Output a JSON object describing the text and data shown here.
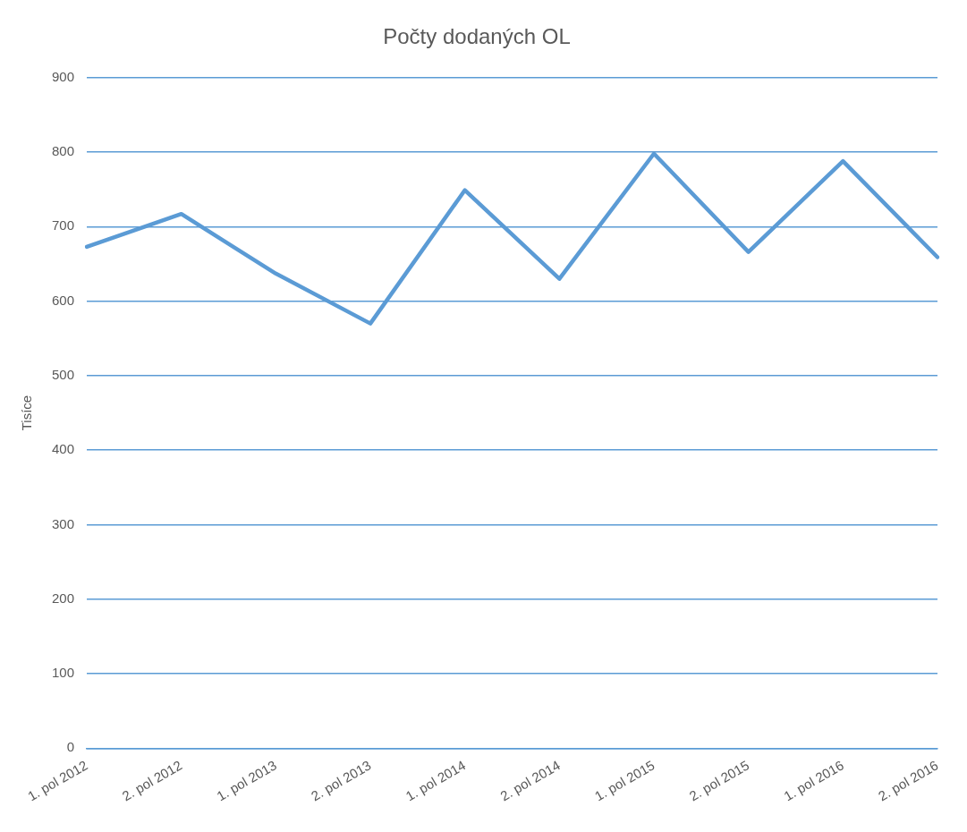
{
  "chart_data": {
    "type": "line",
    "title": "Počty dodaných OL",
    "ylabel": "Tisíce",
    "categories": [
      "1. pol 2012",
      "2. pol 2012",
      "1. pol 2013",
      "2. pol 2013",
      "1. pol 2014",
      "2. pol 2014",
      "1. pol 2015",
      "2. pol 2015",
      "1. pol 2016",
      "2. pol 2016"
    ],
    "series": [
      {
        "color": "#5b9bd5",
        "values": [
          673,
          717,
          637,
          570,
          749,
          630,
          798,
          666,
          788,
          659
        ]
      }
    ],
    "ylim": [
      0,
      900
    ],
    "yticks": [
      0,
      100,
      200,
      300,
      400,
      500,
      600,
      700,
      800,
      900
    ],
    "grid": "y",
    "legend": false,
    "marker": "none",
    "line_style": "solid"
  }
}
